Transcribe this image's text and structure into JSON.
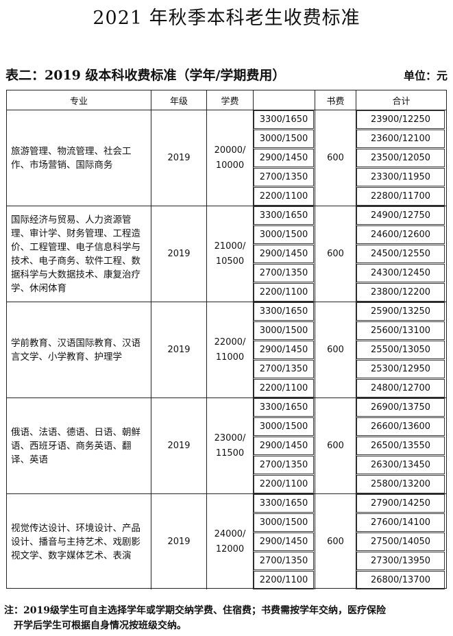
{
  "title": "2021 年秋季本科老生收费标准",
  "subtitle": "表二：2019 级本科收费标准（学年/学期费用）",
  "unit": "单位：元",
  "headers": [
    "专业",
    "年级",
    "学费",
    "",
    "书费",
    "合计"
  ],
  "groups": [
    {
      "major": "旅游管理、物流管理、社会工作、市场营销、国际商务",
      "grade": "2019",
      "tuition": "20000/\n10000",
      "book": "600",
      "fees": [
        "3300/1650",
        "3000/1500",
        "2900/1450",
        "2700/1350",
        "2200/1100"
      ],
      "totals": [
        "23900/12250",
        "23600/12100",
        "23500/12050",
        "23300/11950",
        "22800/11700"
      ]
    },
    {
      "major": "国际经济与贸易、人力资源管理、审计学、财务管理、工程造价、工程管理、电子信息科学与技术、电子商务、软件工程、数据科学与大数据技术、康复治疗学、休闲体育",
      "grade": "2019",
      "tuition": "21000/\n10500",
      "book": "600",
      "fees": [
        "3300/1650",
        "3000/1500",
        "2900/1450",
        "2700/1350",
        "2200/1100"
      ],
      "totals": [
        "24900/12750",
        "24600/12600",
        "24500/12550",
        "24300/12450",
        "23800/12200"
      ]
    },
    {
      "major": "学前教育、汉语国际教育、汉语言文学、小学教育、护理学",
      "grade": "2019",
      "tuition": "22000/\n11000",
      "book": "600",
      "fees": [
        "3300/1650",
        "3000/1500",
        "2900/1450",
        "2700/1350",
        "2200/1100"
      ],
      "totals": [
        "25900/13250",
        "25600/13100",
        "25500/13050",
        "25300/12950",
        "24800/12700"
      ]
    },
    {
      "major": "俄语、法语、德语、日语、朝鲜语、西班牙语、商务英语、翻译、英语",
      "grade": "2019",
      "tuition": "23000/\n11500",
      "book": "600",
      "fees": [
        "3300/1650",
        "3000/1500",
        "2900/1450",
        "2700/1350",
        "2200/1100"
      ],
      "totals": [
        "26900/13750",
        "26600/13600",
        "26500/13550",
        "26300/13450",
        "25800/13200"
      ]
    },
    {
      "major": "视觉传达设计、环境设计、产品设计、播音与主持艺术、戏剧影视文学、数字媒体艺术、表演",
      "grade": "2019",
      "tuition": "24000/\n12000",
      "book": "600",
      "fees": [
        "3300/1650",
        "3000/1500",
        "2900/1450",
        "2700/1350",
        "2200/1100"
      ],
      "totals": [
        "27900/14250",
        "27600/14100",
        "27500/14050",
        "27300/13950",
        "26800/13700"
      ]
    }
  ],
  "note_line1": "注：2019级学生可自主选择学年或学期交纳学费、住宿费；书费需按学年交纳，医疗保险",
  "note_line2": "开学后学生可根据自身情况按班级交纳。"
}
